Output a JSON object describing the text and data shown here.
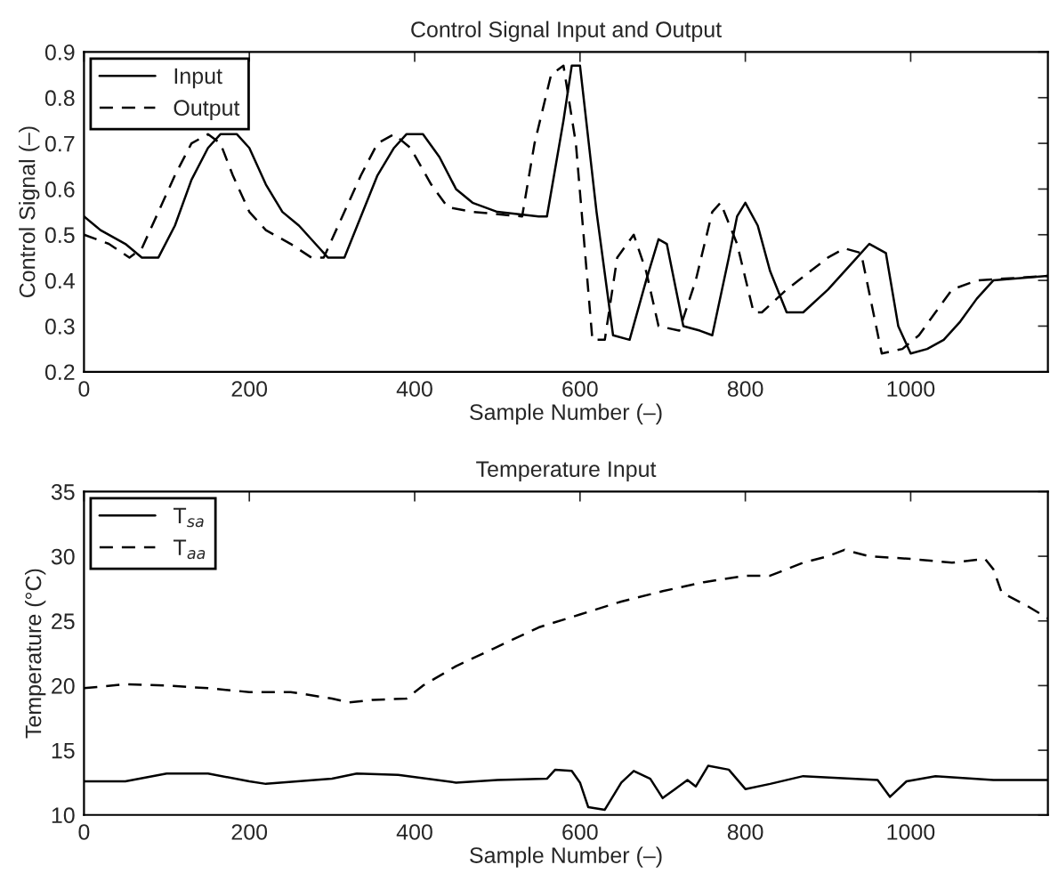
{
  "chart_data": [
    {
      "type": "line",
      "title": "Control Signal Input and Output",
      "xlabel": "Sample Number (–)",
      "ylabel": "Control Signal (–)",
      "xlim": [
        0,
        1166
      ],
      "xticks": [
        0,
        200,
        400,
        600,
        800,
        1000
      ],
      "ylim": [
        0.2,
        0.9
      ],
      "yticks": [
        0.2,
        0.3,
        0.4,
        0.5,
        0.6,
        0.7,
        0.8,
        0.9
      ],
      "legend": "top left",
      "grid": false,
      "series": [
        {
          "name": "Input",
          "color": "#000000",
          "line_style": "solid",
          "x": [
            0,
            20,
            50,
            70,
            90,
            110,
            130,
            150,
            165,
            185,
            200,
            220,
            240,
            260,
            280,
            295,
            315,
            335,
            355,
            375,
            390,
            410,
            430,
            450,
            470,
            500,
            550,
            560,
            580,
            590,
            600,
            620,
            640,
            660,
            680,
            695,
            705,
            725,
            745,
            760,
            780,
            790,
            800,
            815,
            830,
            850,
            870,
            900,
            930,
            950,
            970,
            985,
            1000,
            1020,
            1040,
            1060,
            1080,
            1100,
            1166
          ],
          "values": [
            0.54,
            0.51,
            0.48,
            0.45,
            0.45,
            0.52,
            0.62,
            0.69,
            0.72,
            0.72,
            0.69,
            0.61,
            0.55,
            0.52,
            0.48,
            0.45,
            0.45,
            0.54,
            0.63,
            0.69,
            0.72,
            0.72,
            0.67,
            0.6,
            0.57,
            0.55,
            0.54,
            0.54,
            0.75,
            0.87,
            0.87,
            0.55,
            0.28,
            0.27,
            0.4,
            0.49,
            0.48,
            0.3,
            0.29,
            0.28,
            0.45,
            0.54,
            0.57,
            0.52,
            0.42,
            0.33,
            0.33,
            0.38,
            0.44,
            0.48,
            0.46,
            0.3,
            0.24,
            0.25,
            0.27,
            0.31,
            0.36,
            0.4,
            0.41
          ]
        },
        {
          "name": "Output",
          "color": "#000000",
          "line_style": "dashed",
          "x": [
            0,
            30,
            55,
            70,
            90,
            110,
            130,
            150,
            165,
            180,
            200,
            220,
            250,
            275,
            290,
            310,
            335,
            355,
            375,
            395,
            420,
            440,
            470,
            530,
            545,
            565,
            580,
            595,
            615,
            630,
            645,
            665,
            680,
            695,
            720,
            740,
            760,
            770,
            790,
            810,
            820,
            850,
            900,
            920,
            940,
            965,
            990,
            1010,
            1030,
            1050,
            1080,
            1166
          ],
          "values": [
            0.5,
            0.48,
            0.45,
            0.47,
            0.55,
            0.63,
            0.7,
            0.72,
            0.7,
            0.63,
            0.55,
            0.51,
            0.48,
            0.45,
            0.45,
            0.53,
            0.63,
            0.7,
            0.72,
            0.69,
            0.61,
            0.56,
            0.55,
            0.54,
            0.7,
            0.85,
            0.87,
            0.7,
            0.27,
            0.27,
            0.45,
            0.5,
            0.42,
            0.3,
            0.29,
            0.4,
            0.55,
            0.57,
            0.48,
            0.33,
            0.33,
            0.38,
            0.45,
            0.47,
            0.46,
            0.24,
            0.25,
            0.28,
            0.33,
            0.38,
            0.4,
            0.41
          ]
        }
      ]
    },
    {
      "type": "line",
      "title": "Temperature Input",
      "xlabel": "Sample Number (–)",
      "ylabel": "Temperature (°C)",
      "xlim": [
        0,
        1166
      ],
      "xticks": [
        0,
        200,
        400,
        600,
        800,
        1000
      ],
      "ylim": [
        10,
        35
      ],
      "yticks": [
        10,
        15,
        20,
        25,
        30,
        35
      ],
      "legend": "top left",
      "grid": false,
      "series": [
        {
          "name": "T$_{sa}$",
          "color": "#000000",
          "line_style": "solid",
          "x": [
            0,
            50,
            100,
            150,
            200,
            220,
            300,
            330,
            380,
            450,
            500,
            560,
            570,
            590,
            600,
            610,
            630,
            650,
            665,
            685,
            700,
            715,
            730,
            740,
            755,
            780,
            800,
            830,
            870,
            960,
            975,
            995,
            1030,
            1100,
            1166
          ],
          "values": [
            12.6,
            12.6,
            13.2,
            13.2,
            12.6,
            12.4,
            12.8,
            13.2,
            13.1,
            12.5,
            12.7,
            12.8,
            13.5,
            13.4,
            12.5,
            10.6,
            10.4,
            12.5,
            13.4,
            12.8,
            11.3,
            12.0,
            12.7,
            12.2,
            13.8,
            13.5,
            12.0,
            12.4,
            13.0,
            12.7,
            11.4,
            12.6,
            13.0,
            12.7,
            12.7
          ]
        },
        {
          "name": "T$_{aa}$",
          "color": "#000000",
          "line_style": "dashed",
          "x": [
            0,
            50,
            100,
            150,
            200,
            250,
            300,
            320,
            350,
            390,
            410,
            450,
            500,
            550,
            600,
            650,
            700,
            750,
            800,
            830,
            870,
            900,
            920,
            950,
            1000,
            1050,
            1090,
            1100,
            1110,
            1140,
            1166
          ],
          "values": [
            19.8,
            20.1,
            20.0,
            19.8,
            19.5,
            19.5,
            19.0,
            18.7,
            18.9,
            19.0,
            20.0,
            21.5,
            23.0,
            24.5,
            25.5,
            26.5,
            27.3,
            28.0,
            28.5,
            28.5,
            29.5,
            30.0,
            30.5,
            30.0,
            29.8,
            29.5,
            29.8,
            29.0,
            27.2,
            26.2,
            25.2
          ]
        }
      ]
    }
  ]
}
